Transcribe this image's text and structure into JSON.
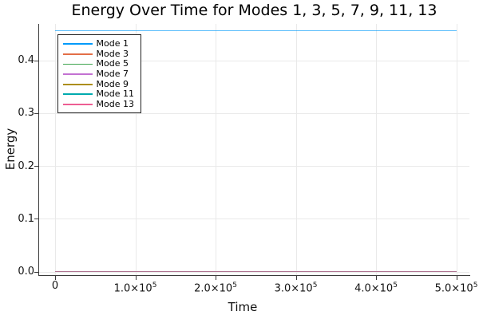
{
  "chart_data": {
    "type": "line",
    "title": "Energy Over Time for Modes 1, 3, 5, 7, 9, 11, 13",
    "xlabel": "Time",
    "ylabel": "Energy",
    "xlim": [
      -21400,
      516400
    ],
    "ylim": [
      -0.0059,
      0.4689
    ],
    "x_data_range": [
      0,
      500000
    ],
    "grid": true,
    "legend_position": "top-left",
    "x_ticks": [
      {
        "value": 0,
        "label": "0",
        "exp": ""
      },
      {
        "value": 100000,
        "label": "1.0×10",
        "exp": "5"
      },
      {
        "value": 200000,
        "label": "2.0×10",
        "exp": "5"
      },
      {
        "value": 300000,
        "label": "3.0×10",
        "exp": "5"
      },
      {
        "value": 400000,
        "label": "4.0×10",
        "exp": "5"
      },
      {
        "value": 500000,
        "label": "5.0×10",
        "exp": "5"
      }
    ],
    "y_ticks": [
      {
        "value": 0.0,
        "label": "0.0"
      },
      {
        "value": 0.1,
        "label": "0.1"
      },
      {
        "value": 0.2,
        "label": "0.2"
      },
      {
        "value": 0.3,
        "label": "0.3"
      },
      {
        "value": 0.4,
        "label": "0.4"
      }
    ],
    "series": [
      {
        "name": "Mode 1",
        "color": "#009AFA",
        "value": 0.456
      },
      {
        "name": "Mode 3",
        "color": "#E36F47",
        "value": 0.0
      },
      {
        "name": "Mode 5",
        "color": "#3EA44E",
        "value": 0.0
      },
      {
        "name": "Mode 7",
        "color": "#C371D2",
        "value": 0.0
      },
      {
        "name": "Mode 9",
        "color": "#AC8E18",
        "value": 0.0
      },
      {
        "name": "Mode 11",
        "color": "#00AAAE",
        "value": 0.0
      },
      {
        "name": "Mode 13",
        "color": "#ED5E93",
        "value": 0.0
      }
    ],
    "colors": {
      "background": "#FFFFFF",
      "grid": "#E9E9E9",
      "spine": "#3A3A3A",
      "text": "#141414"
    }
  }
}
